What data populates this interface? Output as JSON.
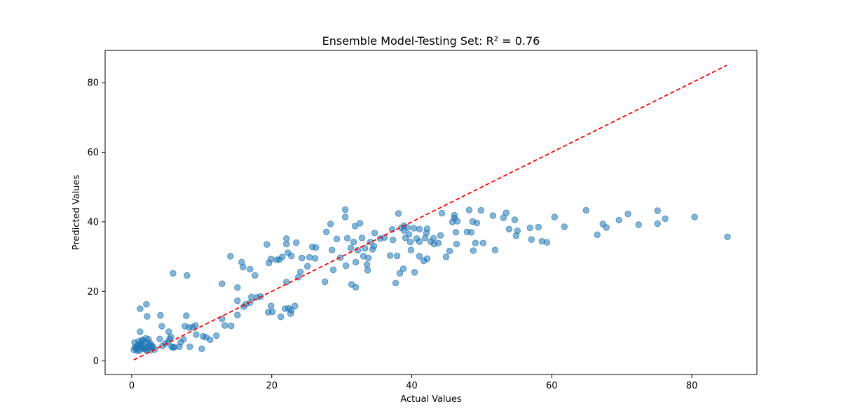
{
  "chart_data": {
    "type": "scatter",
    "title": "Ensemble Model-Testing Set: R² = 0.76",
    "xlabel": "Actual Values",
    "ylabel": "Predicted Values",
    "xlim": [
      -3.8,
      89.3
    ],
    "ylim": [
      -3.9,
      89.3
    ],
    "xticks": [
      0,
      20,
      40,
      60,
      80
    ],
    "yticks": [
      0,
      20,
      40,
      60,
      80
    ],
    "grid": false,
    "point_color": "#1f77b4",
    "point_alpha": 0.55,
    "reference_line": {
      "from": [
        0.3,
        0.3
      ],
      "to": [
        85,
        85
      ],
      "color": "#ff0000",
      "style": "dashed"
    },
    "points": [
      [
        0.3,
        3.2
      ],
      [
        0.5,
        4.0
      ],
      [
        0.7,
        3.4
      ],
      [
        0.9,
        4.6
      ],
      [
        1.1,
        3.0
      ],
      [
        1.3,
        5.0
      ],
      [
        1.5,
        3.6
      ],
      [
        1.7,
        4.2
      ],
      [
        1.9,
        3.3
      ],
      [
        2.1,
        5.4
      ],
      [
        2.3,
        3.8
      ],
      [
        2.5,
        4.7
      ],
      [
        2.7,
        3.1
      ],
      [
        2.9,
        4.4
      ],
      [
        0.4,
        5.3
      ],
      [
        0.8,
        2.9
      ],
      [
        1.2,
        4.8
      ],
      [
        1.6,
        5.9
      ],
      [
        2.0,
        6.5
      ],
      [
        2.4,
        6.2
      ],
      [
        1.0,
        5.6
      ],
      [
        1.4,
        4.1
      ],
      [
        1.8,
        3.5
      ],
      [
        2.2,
        3.0
      ],
      [
        2.6,
        5.1
      ],
      [
        3.0,
        4.0
      ],
      [
        3.3,
        3.3
      ],
      [
        0.6,
        3.7
      ],
      [
        1.5,
        6.0
      ],
      [
        2.8,
        4.0
      ],
      [
        1.2,
        8.4
      ],
      [
        2.2,
        12.8
      ],
      [
        2.1,
        16.3
      ],
      [
        1.2,
        15.0
      ],
      [
        4.1,
        13.1
      ],
      [
        4.3,
        10.0
      ],
      [
        4.0,
        6.3
      ],
      [
        4.4,
        4.3
      ],
      [
        4.8,
        5.0
      ],
      [
        5.2,
        5.4
      ],
      [
        5.3,
        8.4
      ],
      [
        5.4,
        6.3
      ],
      [
        5.6,
        6.9
      ],
      [
        5.7,
        4.1
      ],
      [
        5.9,
        3.9
      ],
      [
        6.1,
        4.0
      ],
      [
        6.8,
        4.1
      ],
      [
        7.0,
        5.4
      ],
      [
        7.4,
        6.2
      ],
      [
        7.6,
        10.0
      ],
      [
        7.8,
        13.0
      ],
      [
        8.2,
        9.6
      ],
      [
        8.3,
        4.1
      ],
      [
        8.7,
        9.7
      ],
      [
        9.1,
        10.2
      ],
      [
        9.2,
        7.6
      ],
      [
        10.0,
        3.5
      ],
      [
        10.2,
        7.1
      ],
      [
        10.6,
        6.8
      ],
      [
        11.2,
        6.1
      ],
      [
        12.1,
        7.3
      ],
      [
        12.9,
        12.1
      ],
      [
        13.3,
        10.2
      ],
      [
        14.2,
        10.1
      ],
      [
        15.1,
        13.2
      ],
      [
        15.1,
        17.3
      ],
      [
        16.0,
        15.6
      ],
      [
        16.3,
        16.3
      ],
      [
        16.9,
        16.8
      ],
      [
        17.1,
        18.4
      ],
      [
        17.9,
        18.3
      ],
      [
        18.4,
        18.5
      ],
      [
        19.5,
        14.0
      ],
      [
        19.9,
        15.8
      ],
      [
        20.1,
        14.1
      ],
      [
        21.3,
        12.7
      ],
      [
        21.9,
        15.0
      ],
      [
        22.4,
        15.1
      ],
      [
        22.7,
        13.6
      ],
      [
        22.8,
        14.6
      ],
      [
        23.3,
        15.8
      ],
      [
        5.9,
        25.2
      ],
      [
        7.9,
        24.6
      ],
      [
        12.9,
        22.2
      ],
      [
        14.1,
        30.1
      ],
      [
        15.1,
        21.1
      ],
      [
        15.7,
        28.4
      ],
      [
        15.9,
        27.0
      ],
      [
        16.9,
        26.4
      ],
      [
        17.6,
        24.6
      ],
      [
        19.3,
        33.5
      ],
      [
        19.6,
        28.2
      ],
      [
        19.9,
        29.3
      ],
      [
        20.7,
        29.1
      ],
      [
        21.1,
        29.1
      ],
      [
        21.5,
        29.9
      ],
      [
        22.1,
        22.7
      ],
      [
        22.1,
        33.6
      ],
      [
        22.1,
        35.2
      ],
      [
        22.3,
        31.1
      ],
      [
        22.8,
        30.2
      ],
      [
        23.5,
        34.0
      ],
      [
        23.8,
        24.1
      ],
      [
        24.1,
        25.6
      ],
      [
        24.3,
        29.6
      ],
      [
        25.1,
        27.2
      ],
      [
        25.4,
        29.8
      ],
      [
        25.8,
        32.8
      ],
      [
        26.2,
        29.5
      ],
      [
        26.3,
        32.6
      ],
      [
        27.6,
        22.8
      ],
      [
        27.8,
        37.1
      ],
      [
        28.4,
        39.4
      ],
      [
        28.6,
        31.9
      ],
      [
        28.8,
        26.2
      ],
      [
        29.3,
        35.1
      ],
      [
        29.8,
        29.7
      ],
      [
        30.5,
        41.4
      ],
      [
        30.5,
        43.5
      ],
      [
        30.6,
        27.4
      ],
      [
        30.8,
        35.3
      ],
      [
        31.3,
        32.5
      ],
      [
        31.4,
        22.0
      ],
      [
        31.7,
        34.2
      ],
      [
        31.9,
        38.8
      ],
      [
        32.0,
        28.4
      ],
      [
        32.0,
        21.2
      ],
      [
        32.3,
        31.8
      ],
      [
        32.6,
        39.6
      ],
      [
        32.9,
        35.4
      ],
      [
        33.1,
        30.1
      ],
      [
        33.3,
        32.4
      ],
      [
        33.6,
        27.7
      ],
      [
        33.7,
        26.1
      ],
      [
        33.8,
        29.6
      ],
      [
        34.1,
        34.2
      ],
      [
        34.4,
        32.1
      ],
      [
        34.6,
        33.0
      ],
      [
        34.7,
        36.8
      ],
      [
        35.5,
        35.2
      ],
      [
        36.1,
        35.5
      ],
      [
        36.9,
        30.3
      ],
      [
        37.2,
        37.8
      ],
      [
        37.3,
        34.8
      ],
      [
        37.7,
        22.4
      ],
      [
        37.9,
        30.2
      ],
      [
        38.1,
        42.4
      ],
      [
        38.3,
        25.2
      ],
      [
        38.5,
        38.3
      ],
      [
        38.8,
        26.5
      ],
      [
        38.9,
        37.5
      ],
      [
        38.9,
        38.9
      ],
      [
        39.1,
        35.4
      ],
      [
        39.4,
        38.4
      ],
      [
        39.6,
        36.4
      ],
      [
        39.8,
        34.2
      ],
      [
        39.9,
        31.9
      ],
      [
        40.3,
        38.2
      ],
      [
        40.4,
        25.5
      ],
      [
        40.7,
        35.2
      ],
      [
        41.1,
        30.1
      ],
      [
        41.1,
        34.3
      ],
      [
        41.1,
        37.9
      ],
      [
        41.7,
        28.8
      ],
      [
        41.9,
        35.4
      ],
      [
        42.1,
        36.8
      ],
      [
        42.2,
        38.0
      ],
      [
        42.2,
        29.4
      ],
      [
        42.7,
        34.3
      ],
      [
        43.1,
        35.3
      ],
      [
        43.2,
        33.6
      ],
      [
        43.8,
        33.9
      ],
      [
        44.1,
        36.1
      ],
      [
        44.3,
        42.5
      ],
      [
        44.9,
        29.9
      ],
      [
        45.4,
        31.6
      ],
      [
        45.8,
        40.0
      ],
      [
        46.1,
        41.1
      ],
      [
        46.1,
        41.9
      ],
      [
        46.3,
        37.0
      ],
      [
        46.4,
        33.6
      ],
      [
        46.5,
        40.2
      ],
      [
        47.9,
        37.1
      ],
      [
        48.2,
        43.4
      ],
      [
        48.5,
        37.0
      ],
      [
        48.7,
        40.1
      ],
      [
        48.8,
        31.7
      ],
      [
        49.1,
        33.9
      ],
      [
        49.3,
        39.7
      ],
      [
        49.9,
        43.3
      ],
      [
        50.2,
        33.9
      ],
      [
        51.6,
        41.8
      ],
      [
        51.9,
        31.9
      ],
      [
        53.1,
        41.2
      ],
      [
        53.5,
        42.6
      ],
      [
        53.9,
        37.9
      ],
      [
        54.7,
        40.6
      ],
      [
        54.9,
        36.0
      ],
      [
        55.1,
        37.4
      ],
      [
        56.9,
        38.3
      ],
      [
        57.1,
        34.9
      ],
      [
        58.1,
        38.5
      ],
      [
        58.6,
        34.4
      ],
      [
        59.3,
        34.1
      ],
      [
        60.4,
        41.4
      ],
      [
        61.8,
        38.6
      ],
      [
        64.9,
        43.3
      ],
      [
        66.5,
        36.3
      ],
      [
        67.3,
        39.4
      ],
      [
        67.8,
        38.4
      ],
      [
        69.6,
        40.5
      ],
      [
        70.9,
        42.3
      ],
      [
        72.4,
        39.2
      ],
      [
        75.1,
        43.2
      ],
      [
        75.1,
        39.5
      ],
      [
        76.2,
        40.9
      ],
      [
        80.4,
        41.4
      ],
      [
        85.1,
        35.7
      ]
    ]
  }
}
